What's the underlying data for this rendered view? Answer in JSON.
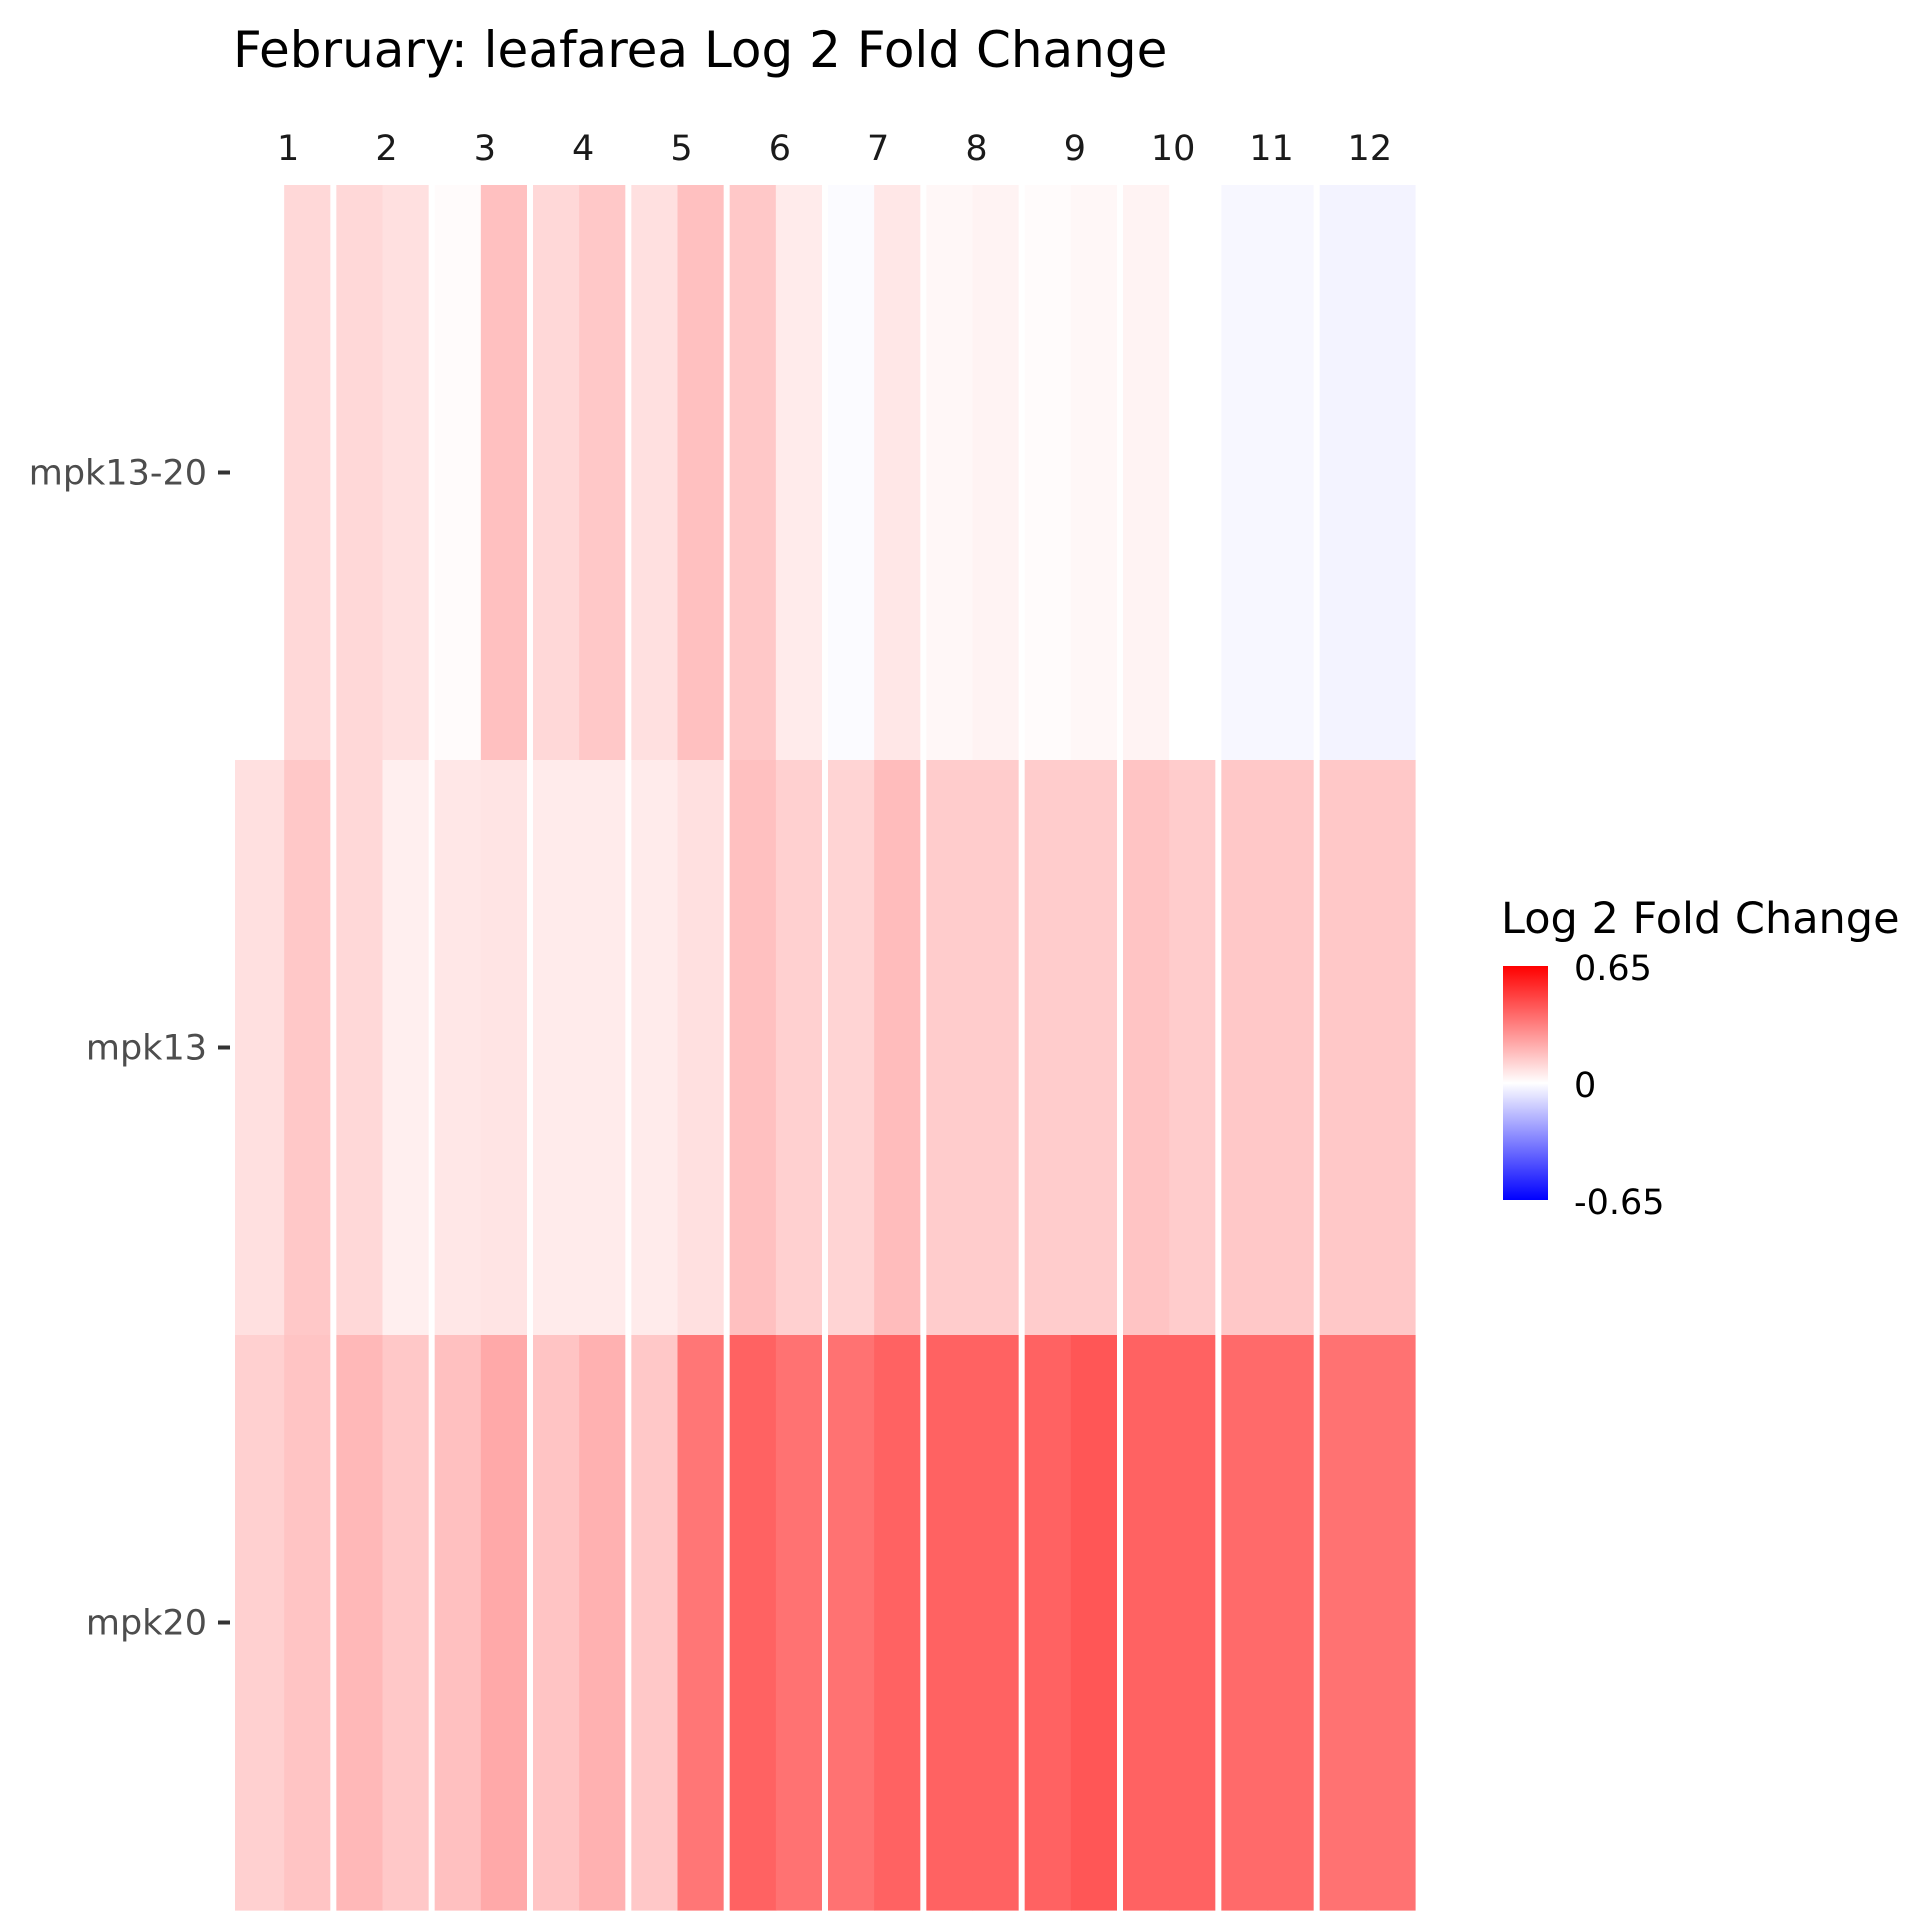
{
  "chart_data": {
    "type": "heatmap",
    "title": "February: leafarea Log 2 Fold Change",
    "columns": [
      "1",
      "2",
      "3",
      "4",
      "5",
      "6",
      "7",
      "8",
      "9",
      "10",
      "11",
      "12"
    ],
    "subcolumns_per_column": 2,
    "rows": [
      "mpk13-20",
      "mpk13",
      "mpk20"
    ],
    "values": [
      [
        [
          0.0,
          0.1
        ],
        [
          0.1,
          0.08
        ],
        [
          0.01,
          0.16
        ],
        [
          0.1,
          0.14
        ],
        [
          0.08,
          0.16
        ],
        [
          0.14,
          0.05
        ],
        [
          -0.01,
          0.06
        ],
        [
          0.02,
          0.03
        ],
        [
          0.01,
          0.02
        ],
        [
          0.03,
          0.0
        ],
        [
          -0.02,
          -0.02
        ],
        [
          -0.03,
          -0.03
        ]
      ],
      [
        [
          0.08,
          0.14
        ],
        [
          0.1,
          0.04
        ],
        [
          0.06,
          0.07
        ],
        [
          0.05,
          0.05
        ],
        [
          0.05,
          0.08
        ],
        [
          0.16,
          0.12
        ],
        [
          0.11,
          0.17
        ],
        [
          0.13,
          0.13
        ],
        [
          0.13,
          0.13
        ],
        [
          0.15,
          0.13
        ],
        [
          0.14,
          0.14
        ],
        [
          0.14,
          0.14
        ]
      ],
      [
        [
          0.12,
          0.15
        ],
        [
          0.18,
          0.14
        ],
        [
          0.16,
          0.22
        ],
        [
          0.15,
          0.2
        ],
        [
          0.14,
          0.35
        ],
        [
          0.4,
          0.36
        ],
        [
          0.36,
          0.4
        ],
        [
          0.4,
          0.4
        ],
        [
          0.4,
          0.43
        ],
        [
          0.4,
          0.4
        ],
        [
          0.38,
          0.38
        ],
        [
          0.36,
          0.36
        ]
      ]
    ],
    "legend": {
      "title": "Log 2 Fold Change",
      "max_label": "0.65",
      "mid_label": "0",
      "min_label": "-0.65",
      "max": 0.65,
      "mid": 0,
      "min": -0.65,
      "position": "right"
    },
    "colors": {
      "high": "#ff0000",
      "mid": "#ffffff",
      "low": "#0000ff"
    },
    "grid": false
  }
}
